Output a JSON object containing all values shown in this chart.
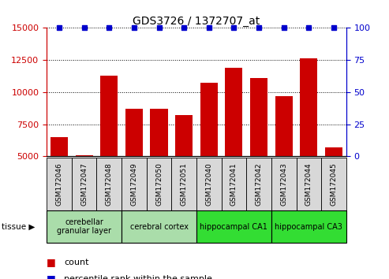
{
  "title": "GDS3726 / 1372707_at",
  "samples": [
    "GSM172046",
    "GSM172047",
    "GSM172048",
    "GSM172049",
    "GSM172050",
    "GSM172051",
    "GSM172040",
    "GSM172041",
    "GSM172042",
    "GSM172043",
    "GSM172044",
    "GSM172045"
  ],
  "counts": [
    6500,
    5100,
    11300,
    8700,
    8700,
    8200,
    10700,
    11900,
    11100,
    9700,
    12600,
    5700
  ],
  "percentiles": [
    100,
    100,
    100,
    100,
    100,
    100,
    100,
    100,
    100,
    100,
    100,
    100
  ],
  "bar_color": "#cc0000",
  "dot_color": "#0000cc",
  "ylim_left": [
    5000,
    15000
  ],
  "ylim_right": [
    0,
    100
  ],
  "yticks_left": [
    5000,
    7500,
    10000,
    12500,
    15000
  ],
  "yticks_right": [
    0,
    25,
    50,
    75,
    100
  ],
  "tissue_groups": [
    {
      "label": "cerebellar\ngranular layer",
      "start": 0,
      "end": 3,
      "color": "#aaddaa"
    },
    {
      "label": "cerebral cortex",
      "start": 3,
      "end": 6,
      "color": "#aaddaa"
    },
    {
      "label": "hippocampal CA1",
      "start": 6,
      "end": 9,
      "color": "#33dd33"
    },
    {
      "label": "hippocampal CA3",
      "start": 9,
      "end": 12,
      "color": "#33dd33"
    }
  ],
  "tissue_label": "tissue",
  "legend_count_label": "count",
  "legend_percentile_label": "percentile rank within the sample",
  "bar_color_hex": "#cc0000",
  "dot_color_hex": "#0000cc",
  "tick_label_color_left": "#cc0000",
  "tick_label_color_right": "#0000cc",
  "sample_box_color": "#d8d8d8",
  "fig_width": 4.93,
  "fig_height": 3.54
}
